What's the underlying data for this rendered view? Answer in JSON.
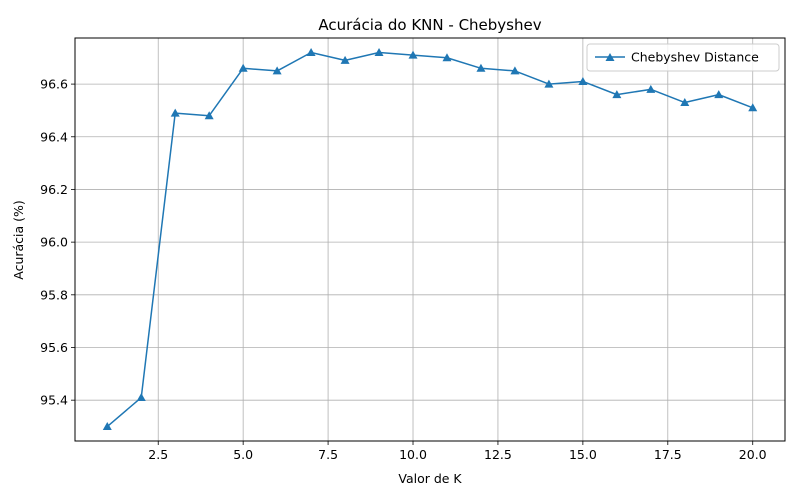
{
  "chart_data": {
    "type": "line",
    "title": "Acurácia do KNN - Chebyshev",
    "xlabel": "Valor de K",
    "ylabel": "Acurácia (%)",
    "xlim": [
      0.05,
      20.95
    ],
    "ylim": [
      95.245,
      96.775
    ],
    "xticks": [
      2.5,
      5.0,
      7.5,
      10.0,
      12.5,
      15.0,
      17.5,
      20.0
    ],
    "xtick_labels": [
      "2.5",
      "5.0",
      "7.5",
      "10.0",
      "12.5",
      "15.0",
      "17.5",
      "20.0"
    ],
    "yticks": [
      95.4,
      95.6,
      95.8,
      96.0,
      96.2,
      96.4,
      96.6
    ],
    "ytick_labels": [
      "95.4",
      "95.6",
      "95.8",
      "96.0",
      "96.2",
      "96.4",
      "96.6"
    ],
    "grid": true,
    "legend_position": "top-right",
    "series": [
      {
        "name": "Chebyshev Distance",
        "color": "#1f77b4",
        "marker": "triangle-up",
        "x": [
          1,
          2,
          3,
          4,
          5,
          6,
          7,
          8,
          9,
          10,
          11,
          12,
          13,
          14,
          15,
          16,
          17,
          18,
          19,
          20
        ],
        "y": [
          95.3,
          95.41,
          96.49,
          96.48,
          96.66,
          96.65,
          96.72,
          96.69,
          96.72,
          96.71,
          96.7,
          96.66,
          96.65,
          96.6,
          96.61,
          96.56,
          96.58,
          96.53,
          96.56,
          96.51
        ]
      }
    ]
  }
}
